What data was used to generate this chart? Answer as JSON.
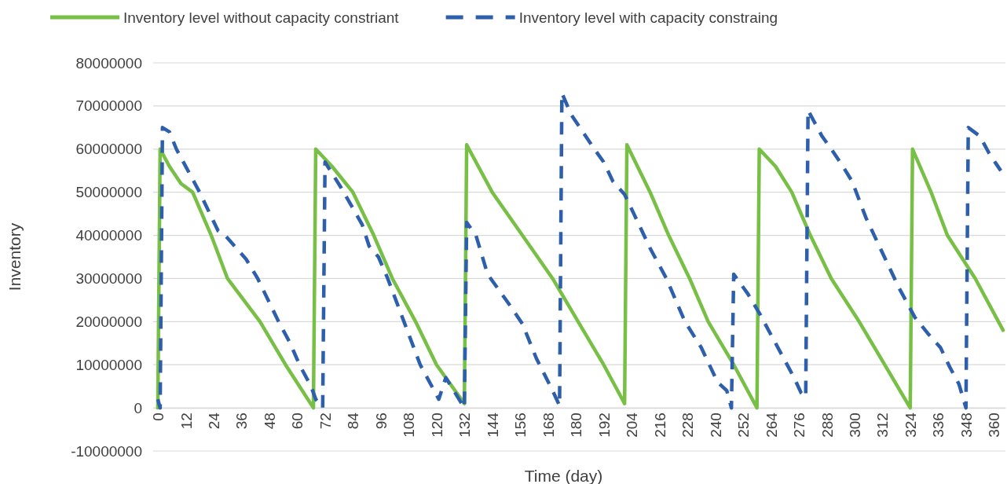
{
  "chart_data": {
    "type": "line",
    "xlabel": "Time (day)",
    "ylabel": "Inventory",
    "xlim": [
      -2,
      365
    ],
    "ylim": [
      -10000000,
      80000000
    ],
    "xticks": [
      0,
      12,
      24,
      36,
      48,
      60,
      72,
      84,
      96,
      108,
      120,
      132,
      144,
      156,
      168,
      180,
      192,
      204,
      216,
      228,
      240,
      252,
      264,
      276,
      288,
      300,
      312,
      324,
      336,
      348,
      360
    ],
    "yticks": [
      -10000000,
      0,
      10000000,
      20000000,
      30000000,
      40000000,
      50000000,
      60000000,
      70000000,
      80000000
    ],
    "grid": "y",
    "legend": "top",
    "marker": "none",
    "series": [
      {
        "name": "Inventory level without capacity constriant",
        "color": "#77bf45",
        "line_style": "solid",
        "x": [
          0,
          1,
          5,
          10,
          15,
          23,
          30,
          37,
          44,
          55,
          67,
          68,
          75,
          84,
          93,
          101,
          111,
          120,
          132,
          133,
          144,
          157,
          170,
          181,
          192,
          201,
          202,
          212,
          220,
          229,
          237,
          248,
          258,
          259,
          266,
          273,
          281,
          290,
          302,
          313,
          324,
          325,
          333,
          340,
          352,
          362,
          364
        ],
        "values": [
          0,
          60000000,
          56000000,
          52000000,
          50000000,
          40000000,
          30000000,
          25000000,
          20000000,
          10000000,
          0,
          60000000,
          56000000,
          50000000,
          40000000,
          30000000,
          20000000,
          10000000,
          1000000,
          61000000,
          50000000,
          40000000,
          30000000,
          20000000,
          10000000,
          1000000,
          61000000,
          50000000,
          40000000,
          30000000,
          20000000,
          10000000,
          0,
          60000000,
          56000000,
          50000000,
          40000000,
          30000000,
          20000000,
          10000000,
          0,
          60000000,
          50000000,
          40000000,
          30000000,
          20000000,
          18000000
        ]
      },
      {
        "name": "Inventory level with capacity constraing",
        "color": "#2e5fac",
        "line_style": "dashed",
        "x": [
          0,
          1,
          2,
          5,
          8,
          18,
          26,
          29,
          38,
          43,
          52,
          57,
          61,
          66,
          68,
          71,
          72,
          79,
          88,
          91,
          95,
          99,
          106,
          113,
          121,
          124,
          132,
          133,
          137,
          142,
          148,
          152,
          157,
          163,
          170,
          173,
          174,
          178,
          183,
          188,
          192,
          196,
          201,
          205,
          212,
          219,
          227,
          234,
          241,
          245,
          247,
          248,
          254,
          259,
          266,
          270,
          274,
          277,
          279,
          280,
          286,
          290,
          295,
          299,
          305,
          312,
          319,
          326,
          332,
          337,
          341,
          345,
          348,
          349,
          354,
          358,
          363
        ],
        "values": [
          2000000,
          0,
          65000000,
          64000000,
          60000000,
          50000000,
          41000000,
          40000000,
          34500000,
          30000000,
          20000000,
          15000000,
          10000000,
          5000000,
          2000000,
          0,
          57000000,
          51000000,
          42500000,
          37500000,
          35000000,
          30000000,
          20000000,
          10000000,
          2000000,
          7000000,
          0,
          43000000,
          40000000,
          31000000,
          26500000,
          23500000,
          19500000,
          11500000,
          4000000,
          500000,
          73000000,
          68000000,
          64000000,
          60000000,
          57000000,
          52500000,
          49500000,
          45000000,
          37000000,
          30000000,
          20000000,
          14000000,
          6000000,
          4000000,
          0,
          31000000,
          26500000,
          22000000,
          15000000,
          11000000,
          7000000,
          3500000,
          2500000,
          69000000,
          63000000,
          60000000,
          56000000,
          52500000,
          44000000,
          36000000,
          28000000,
          21000000,
          17000000,
          14000000,
          9500000,
          5500000,
          0,
          65000000,
          63000000,
          59000000,
          55000000
        ]
      }
    ]
  }
}
